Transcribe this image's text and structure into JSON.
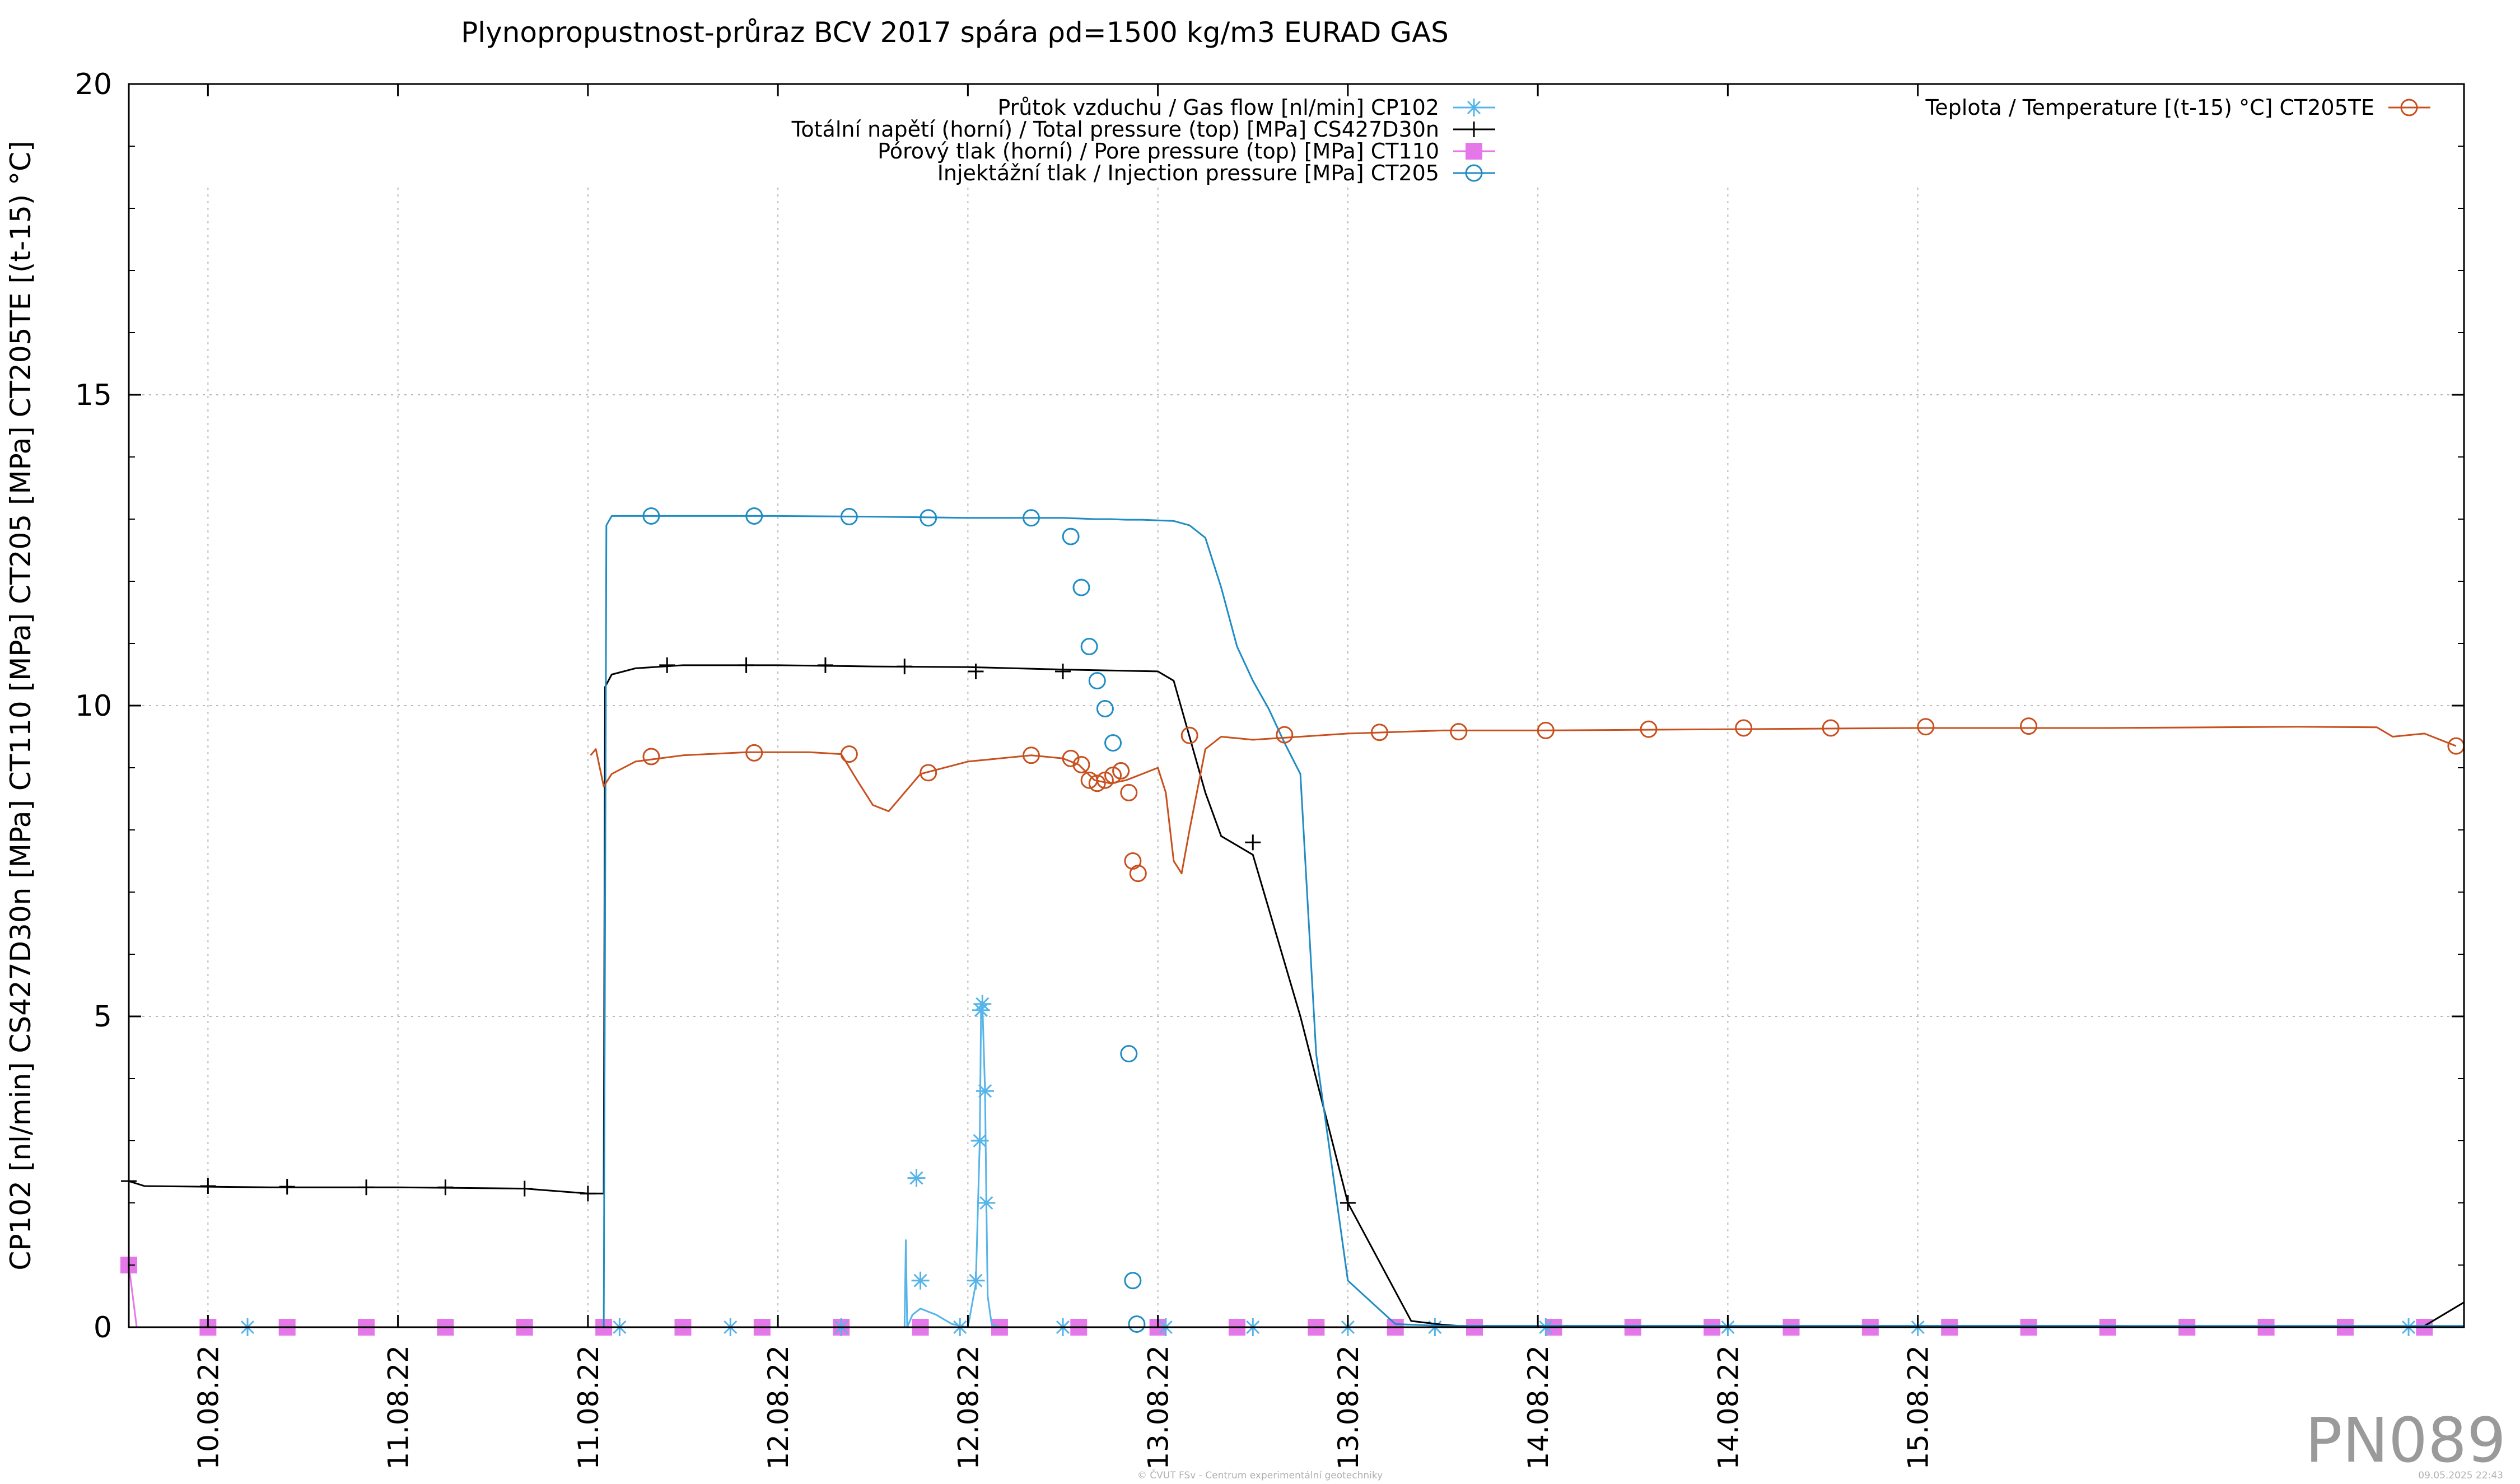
{
  "chart_data": {
    "type": "line",
    "title": "Plynopropustnost-průraz BCV 2017 spára ρd=1500 kg/m3 EURAD GAS",
    "xlabel": "",
    "ylabel": "CP102 [nl/min] CS427D30n [MPa] CT110 [MPa] CT205 [MPa] CT205TE [(t-15) °C]",
    "ylim": [
      0,
      20
    ],
    "y_ticks": [
      0,
      5,
      10,
      15,
      20
    ],
    "xlim": [
      "2022-08-09 19:00",
      "2022-08-15 22:30"
    ],
    "x_ticks": [
      {
        "t": "2022-08-10 00:00",
        "label": "10.08.22"
      },
      {
        "t": "2022-08-10 12:00",
        "label": "11.08.22"
      },
      {
        "t": "2022-08-11 00:00",
        "label": "11.08.22"
      },
      {
        "t": "2022-08-11 12:00",
        "label": "12.08.22"
      },
      {
        "t": "2022-08-12 00:00",
        "label": "12.08.22"
      },
      {
        "t": "2022-08-12 12:00",
        "label": "13.08.22"
      },
      {
        "t": "2022-08-13 00:00",
        "label": "13.08.22"
      },
      {
        "t": "2022-08-13 12:00",
        "label": "14.08.22"
      },
      {
        "t": "2022-08-14 00:00",
        "label": "14.08.22"
      },
      {
        "t": "2022-08-14 12:00",
        "label": "15.08.22"
      }
    ],
    "grid": true,
    "legend_position": "top",
    "series": [
      {
        "name": "Průtok vzduchu / Gas flow [nl/min] CP102",
        "color": "#56b4e9",
        "marker": "asterisk",
        "x": [
          "2022-08-09 19:00",
          "2022-08-11 20:00",
          "2022-08-11 20:05",
          "2022-08-11 20:10",
          "2022-08-11 20:30",
          "2022-08-11 21:00",
          "2022-08-11 21:30",
          "2022-08-11 22:00",
          "2022-08-11 22:40",
          "2022-08-11 23:00",
          "2022-08-12 00:00",
          "2022-08-12 00:30",
          "2022-08-12 00:45",
          "2022-08-12 00:50",
          "2022-08-12 00:55",
          "2022-08-12 01:05",
          "2022-08-12 01:10",
          "2022-08-12 01:15",
          "2022-08-12 01:30",
          "2022-08-12 02:00",
          "2022-08-15 22:30"
        ],
        "y": [
          0,
          0,
          1.4,
          0,
          0.2,
          0.3,
          0.25,
          0.2,
          0.1,
          0.05,
          0,
          0.7,
          3.0,
          5.1,
          5.2,
          3.8,
          2.0,
          0.5,
          0.05,
          0,
          0
        ],
        "marker_points": [
          {
            "x": "2022-08-10 02:30",
            "y": 0
          },
          {
            "x": "2022-08-11 02:00",
            "y": 0
          },
          {
            "x": "2022-08-11 09:00",
            "y": 0
          },
          {
            "x": "2022-08-11 16:00",
            "y": 0
          },
          {
            "x": "2022-08-11 23:30",
            "y": 0
          },
          {
            "x": "2022-08-12 06:00",
            "y": 0
          },
          {
            "x": "2022-08-11 20:45",
            "y": 2.4
          },
          {
            "x": "2022-08-11 21:00",
            "y": 0.75
          },
          {
            "x": "2022-08-12 00:30",
            "y": 0.75
          },
          {
            "x": "2022-08-12 00:45",
            "y": 3.0
          },
          {
            "x": "2022-08-12 00:50",
            "y": 5.1
          },
          {
            "x": "2022-08-12 00:55",
            "y": 5.2
          },
          {
            "x": "2022-08-12 01:05",
            "y": 3.8
          },
          {
            "x": "2022-08-12 01:10",
            "y": 2.0
          },
          {
            "x": "2022-08-12 12:30",
            "y": 0
          },
          {
            "x": "2022-08-12 18:00",
            "y": 0
          },
          {
            "x": "2022-08-13 00:00",
            "y": 0
          },
          {
            "x": "2022-08-13 05:30",
            "y": 0
          },
          {
            "x": "2022-08-13 12:30",
            "y": 0
          },
          {
            "x": "2022-08-14 00:00",
            "y": 0
          },
          {
            "x": "2022-08-14 12:00",
            "y": 0
          },
          {
            "x": "2022-08-15 19:00",
            "y": 0
          }
        ]
      },
      {
        "name": "Totální napětí (horní) / Total pressure (top) [MPa] CS427D30n",
        "color": "#000000",
        "marker": "plus",
        "x": [
          "2022-08-09 19:00",
          "2022-08-09 20:00",
          "2022-08-10 04:00",
          "2022-08-10 12:00",
          "2022-08-10 20:00",
          "2022-08-11 00:00",
          "2022-08-11 01:00",
          "2022-08-11 01:05",
          "2022-08-11 01:30",
          "2022-08-11 03:00",
          "2022-08-11 06:00",
          "2022-08-11 12:00",
          "2022-08-11 18:00",
          "2022-08-12 00:00",
          "2022-08-12 06:00",
          "2022-08-12 12:00",
          "2022-08-12 13:00",
          "2022-08-12 15:00",
          "2022-08-12 16:00",
          "2022-08-12 18:00",
          "2022-08-12 21:00",
          "2022-08-13 00:00",
          "2022-08-13 04:00",
          "2022-08-13 06:00",
          "2022-08-13 07:00",
          "2022-08-13 08:00",
          "2022-08-13 12:00",
          "2022-08-14 00:00",
          "2022-08-14 12:00",
          "2022-08-15 00:00",
          "2022-08-15 12:00",
          "2022-08-15 15:00",
          "2022-08-15 20:00",
          "2022-08-15 22:30"
        ],
        "y": [
          2.35,
          2.27,
          2.25,
          2.25,
          2.23,
          2.15,
          2.15,
          10.3,
          10.5,
          10.6,
          10.65,
          10.65,
          10.63,
          10.62,
          10.58,
          10.55,
          10.4,
          8.6,
          7.9,
          7.6,
          5.0,
          2.0,
          0.1,
          0.04,
          0.02,
          0.02,
          0.02,
          0.02,
          0.02,
          0.02,
          0.01,
          0.01,
          0.02,
          0.4
        ],
        "marker_points": [
          {
            "x": "2022-08-09 19:00",
            "y": 2.35
          },
          {
            "x": "2022-08-10 00:00",
            "y": 2.27
          },
          {
            "x": "2022-08-10 05:00",
            "y": 2.26
          },
          {
            "x": "2022-08-10 10:00",
            "y": 2.25
          },
          {
            "x": "2022-08-10 15:00",
            "y": 2.25
          },
          {
            "x": "2022-08-10 20:00",
            "y": 2.23
          },
          {
            "x": "2022-08-11 00:00",
            "y": 2.15
          },
          {
            "x": "2022-08-11 05:00",
            "y": 10.65
          },
          {
            "x": "2022-08-11 10:00",
            "y": 10.65
          },
          {
            "x": "2022-08-11 15:00",
            "y": 10.65
          },
          {
            "x": "2022-08-11 20:00",
            "y": 10.63
          },
          {
            "x": "2022-08-12 00:30",
            "y": 10.55
          },
          {
            "x": "2022-08-12 06:00",
            "y": 10.55
          },
          {
            "x": "2022-08-12 18:00",
            "y": 7.8
          },
          {
            "x": "2022-08-13 00:00",
            "y": 2.0
          }
        ]
      },
      {
        "name": "Pórový tlak (horní) / Pore pressure (top) [MPa] CT110",
        "color": "#e478e8",
        "marker": "square",
        "x": [
          "2022-08-09 19:00",
          "2022-08-09 19:30",
          "2022-08-15 21:30",
          "2022-08-15 22:00"
        ],
        "y": [
          1.0,
          0,
          0,
          0
        ],
        "marker_points": [
          {
            "x": "2022-08-09 19:00",
            "y": 1.0
          },
          {
            "x": "2022-08-10 00:00",
            "y": 0
          },
          {
            "x": "2022-08-10 05:00",
            "y": 0
          },
          {
            "x": "2022-08-10 10:00",
            "y": 0
          },
          {
            "x": "2022-08-10 15:00",
            "y": 0
          },
          {
            "x": "2022-08-10 20:00",
            "y": 0
          },
          {
            "x": "2022-08-11 01:00",
            "y": 0
          },
          {
            "x": "2022-08-11 06:00",
            "y": 0
          },
          {
            "x": "2022-08-11 11:00",
            "y": 0
          },
          {
            "x": "2022-08-11 16:00",
            "y": 0
          },
          {
            "x": "2022-08-11 21:00",
            "y": 0
          },
          {
            "x": "2022-08-12 02:00",
            "y": 0
          },
          {
            "x": "2022-08-12 07:00",
            "y": 0
          },
          {
            "x": "2022-08-12 12:00",
            "y": 0
          },
          {
            "x": "2022-08-12 17:00",
            "y": 0
          },
          {
            "x": "2022-08-12 22:00",
            "y": 0
          },
          {
            "x": "2022-08-13 03:00",
            "y": 0
          },
          {
            "x": "2022-08-13 08:00",
            "y": 0
          },
          {
            "x": "2022-08-13 13:00",
            "y": 0
          },
          {
            "x": "2022-08-13 18:00",
            "y": 0
          },
          {
            "x": "2022-08-13 23:00",
            "y": 0
          },
          {
            "x": "2022-08-14 04:00",
            "y": 0
          },
          {
            "x": "2022-08-14 09:00",
            "y": 0
          },
          {
            "x": "2022-08-14 14:00",
            "y": 0
          },
          {
            "x": "2022-08-14 19:00",
            "y": 0
          },
          {
            "x": "2022-08-15 00:00",
            "y": 0
          },
          {
            "x": "2022-08-15 05:00",
            "y": 0
          },
          {
            "x": "2022-08-15 10:00",
            "y": 0
          },
          {
            "x": "2022-08-15 15:00",
            "y": 0
          },
          {
            "x": "2022-08-15 20:00",
            "y": 0
          }
        ]
      },
      {
        "name": "Injektážní tlak / Injection pressure [MPa] CT205",
        "color": "#1f8cc4",
        "marker": "circle",
        "x": [
          "2022-08-09 19:00",
          "2022-08-11 01:00",
          "2022-08-11 01:10",
          "2022-08-11 01:30",
          "2022-08-11 06:00",
          "2022-08-11 12:00",
          "2022-08-11 18:00",
          "2022-08-12 00:00",
          "2022-08-12 06:00",
          "2022-08-12 07:00",
          "2022-08-12 08:00",
          "2022-08-12 09:00",
          "2022-08-12 10:00",
          "2022-08-12 11:00",
          "2022-08-12 12:00",
          "2022-08-12 13:00",
          "2022-08-12 14:00",
          "2022-08-12 15:00",
          "2022-08-12 16:00",
          "2022-08-12 17:00",
          "2022-08-12 18:00",
          "2022-08-12 19:00",
          "2022-08-12 20:00",
          "2022-08-12 21:00",
          "2022-08-12 22:00",
          "2022-08-13 00:00",
          "2022-08-13 03:00",
          "2022-08-13 06:00",
          "2022-08-15 22:30"
        ],
        "y": [
          0,
          0,
          12.9,
          13.05,
          13.05,
          13.05,
          13.04,
          13.02,
          13.02,
          13.01,
          13.0,
          13.0,
          12.99,
          12.99,
          12.98,
          12.97,
          12.9,
          12.7,
          11.9,
          10.95,
          10.4,
          9.95,
          9.4,
          8.9,
          4.4,
          0.75,
          0.05,
          0.02,
          0.02
        ],
        "marker_points": [
          {
            "x": "2022-08-11 04:00",
            "y": 13.05
          },
          {
            "x": "2022-08-11 10:30",
            "y": 13.05
          },
          {
            "x": "2022-08-11 16:30",
            "y": 13.04
          },
          {
            "x": "2022-08-11 21:30",
            "y": 13.02
          },
          {
            "x": "2022-08-12 04:00",
            "y": 13.02
          },
          {
            "x": "2022-08-12 06:30",
            "y": 12.72
          },
          {
            "x": "2022-08-12 07:10",
            "y": 11.9
          },
          {
            "x": "2022-08-12 07:40",
            "y": 10.95
          },
          {
            "x": "2022-08-12 08:10",
            "y": 10.4
          },
          {
            "x": "2022-08-12 08:40",
            "y": 9.95
          },
          {
            "x": "2022-08-12 09:10",
            "y": 9.4
          },
          {
            "x": "2022-08-12 09:40",
            "y": 8.95
          },
          {
            "x": "2022-08-12 10:10",
            "y": 4.4
          },
          {
            "x": "2022-08-12 10:25",
            "y": 0.75
          },
          {
            "x": "2022-08-12 10:40",
            "y": 0.05
          }
        ]
      },
      {
        "name": "Teplota / Temperature [(t-15) °C] CT205TE",
        "color": "#c8501e",
        "marker": "circle",
        "x": [
          "2022-08-11 00:10",
          "2022-08-11 00:30",
          "2022-08-11 01:00",
          "2022-08-11 01:30",
          "2022-08-11 03:00",
          "2022-08-11 06:00",
          "2022-08-11 10:00",
          "2022-08-11 14:00",
          "2022-08-11 16:00",
          "2022-08-11 17:00",
          "2022-08-11 18:00",
          "2022-08-11 19:00",
          "2022-08-11 21:00",
          "2022-08-12 00:00",
          "2022-08-12 04:00",
          "2022-08-12 06:00",
          "2022-08-12 07:00",
          "2022-08-12 08:00",
          "2022-08-12 09:00",
          "2022-08-12 10:00",
          "2022-08-12 11:00",
          "2022-08-12 12:00",
          "2022-08-12 12:30",
          "2022-08-12 13:00",
          "2022-08-12 13:30",
          "2022-08-12 14:00",
          "2022-08-12 15:00",
          "2022-08-12 16:00",
          "2022-08-12 18:00",
          "2022-08-12 21:00",
          "2022-08-13 00:00",
          "2022-08-13 06:00",
          "2022-08-13 12:00",
          "2022-08-14 00:00",
          "2022-08-14 12:00",
          "2022-08-15 00:00",
          "2022-08-15 12:00",
          "2022-08-15 17:00",
          "2022-08-15 18:00",
          "2022-08-15 20:00",
          "2022-08-15 22:00"
        ],
        "y": [
          9.2,
          9.3,
          8.7,
          8.9,
          9.1,
          9.2,
          9.25,
          9.25,
          9.22,
          8.8,
          8.4,
          8.3,
          8.9,
          9.1,
          9.2,
          9.15,
          9.05,
          8.8,
          8.75,
          8.8,
          8.9,
          9.0,
          8.6,
          7.5,
          7.3,
          8.0,
          9.3,
          9.5,
          9.45,
          9.5,
          9.55,
          9.6,
          9.6,
          9.62,
          9.64,
          9.64,
          9.66,
          9.65,
          9.5,
          9.55,
          9.35
        ],
        "marker_points": [
          {
            "x": "2022-08-11 04:00",
            "y": 9.18
          },
          {
            "x": "2022-08-11 10:30",
            "y": 9.24
          },
          {
            "x": "2022-08-11 16:30",
            "y": 9.22
          },
          {
            "x": "2022-08-11 21:30",
            "y": 8.92
          },
          {
            "x": "2022-08-12 04:00",
            "y": 9.2
          },
          {
            "x": "2022-08-12 06:30",
            "y": 9.15
          },
          {
            "x": "2022-08-12 07:10",
            "y": 9.05
          },
          {
            "x": "2022-08-12 07:40",
            "y": 8.8
          },
          {
            "x": "2022-08-12 08:10",
            "y": 8.75
          },
          {
            "x": "2022-08-12 08:40",
            "y": 8.8
          },
          {
            "x": "2022-08-12 09:10",
            "y": 8.88
          },
          {
            "x": "2022-08-12 09:40",
            "y": 8.95
          },
          {
            "x": "2022-08-12 10:10",
            "y": 8.6
          },
          {
            "x": "2022-08-12 10:25",
            "y": 7.5
          },
          {
            "x": "2022-08-12 10:45",
            "y": 7.3
          },
          {
            "x": "2022-08-12 14:00",
            "y": 9.52
          },
          {
            "x": "2022-08-12 20:00",
            "y": 9.53
          },
          {
            "x": "2022-08-13 02:00",
            "y": 9.57
          },
          {
            "x": "2022-08-13 07:00",
            "y": 9.58
          },
          {
            "x": "2022-08-13 12:30",
            "y": 9.6
          },
          {
            "x": "2022-08-13 19:00",
            "y": 9.62
          },
          {
            "x": "2022-08-14 01:00",
            "y": 9.64
          },
          {
            "x": "2022-08-14 06:30",
            "y": 9.64
          },
          {
            "x": "2022-08-14 12:30",
            "y": 9.66
          },
          {
            "x": "2022-08-14 19:00",
            "y": 9.67
          },
          {
            "x": "2022-08-15 22:00",
            "y": 9.35
          }
        ]
      }
    ]
  },
  "watermark": "PN089",
  "footer_left": "© ČVUT FSv - Centrum experimentální geotechniky",
  "footer_right": "09.05.2025 22:43"
}
